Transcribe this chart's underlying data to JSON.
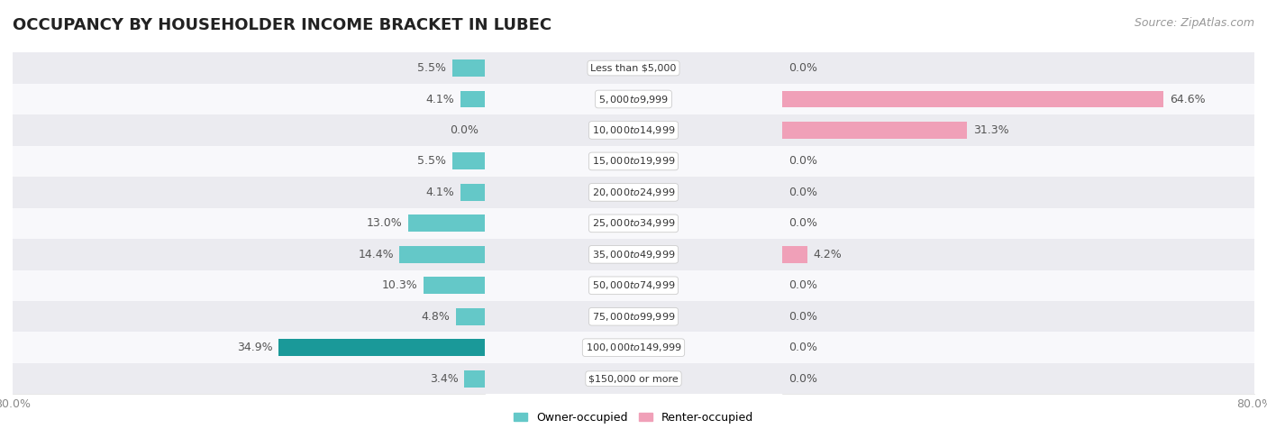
{
  "title": "OCCUPANCY BY HOUSEHOLDER INCOME BRACKET IN LUBEC",
  "source": "Source: ZipAtlas.com",
  "categories": [
    "Less than $5,000",
    "$5,000 to $9,999",
    "$10,000 to $14,999",
    "$15,000 to $19,999",
    "$20,000 to $24,999",
    "$25,000 to $34,999",
    "$35,000 to $49,999",
    "$50,000 to $74,999",
    "$75,000 to $99,999",
    "$100,000 to $149,999",
    "$150,000 or more"
  ],
  "owner_values": [
    5.5,
    4.1,
    0.0,
    5.5,
    4.1,
    13.0,
    14.4,
    10.3,
    4.8,
    34.9,
    3.4
  ],
  "renter_values": [
    0.0,
    64.6,
    31.3,
    0.0,
    0.0,
    0.0,
    4.2,
    0.0,
    0.0,
    0.0,
    0.0
  ],
  "owner_color": "#64c8c8",
  "owner_color_dark": "#1a9999",
  "renter_color": "#f0a0b8",
  "row_bg_even": "#ebebf0",
  "row_bg_odd": "#f8f8fb",
  "axis_limit": 80.0,
  "title_fontsize": 13,
  "source_fontsize": 9,
  "label_fontsize": 9,
  "category_fontsize": 8,
  "legend_fontsize": 9,
  "bar_height": 0.55
}
